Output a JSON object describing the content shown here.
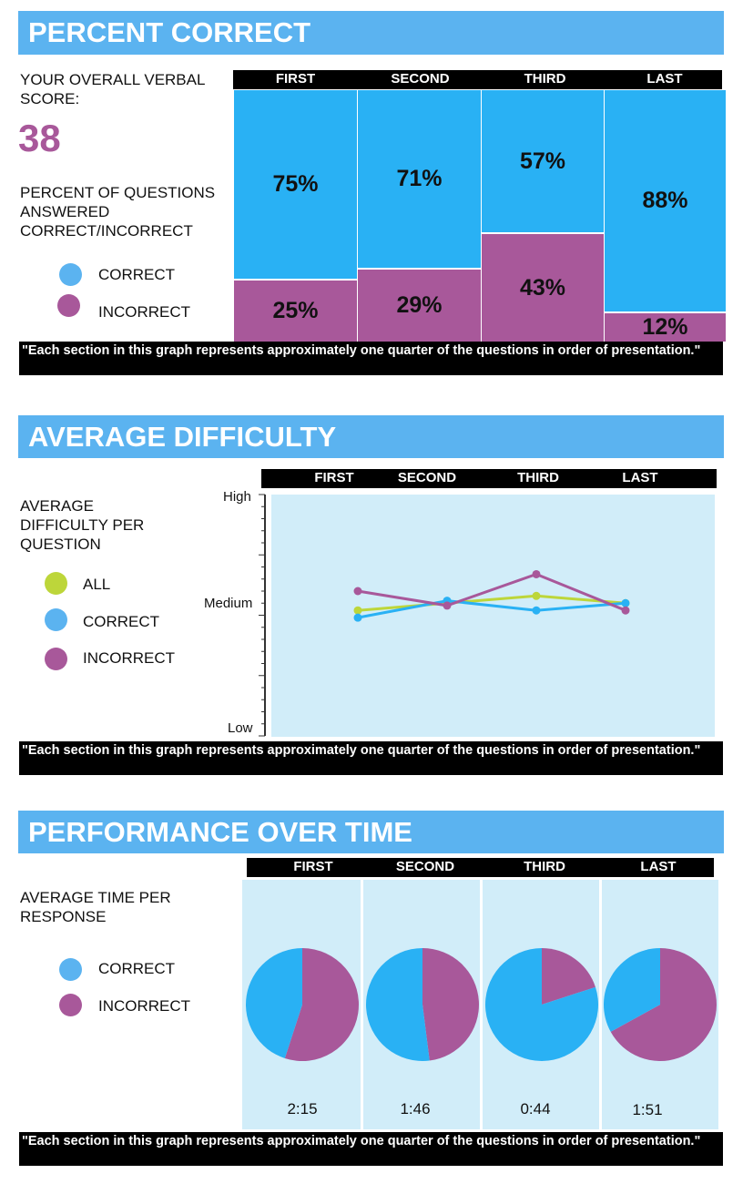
{
  "colors": {
    "correct": "#29b1f4",
    "incorrect": "#a8589a",
    "all": "#bdd63a",
    "banner": "#5bb3f0",
    "panel": "#d1edf9"
  },
  "sections": [
    "FIRST",
    "SECOND",
    "THIRD",
    "LAST"
  ],
  "note": "\"Each section in this graph represents approximately one quarter of the questions in order of presentation.\"",
  "percent": {
    "title": "PERCENT CORRECT",
    "score_label": "YOUR OVERALL VERBAL SCORE:",
    "score": "38",
    "desc": "PERCENT OF QUESTIONS ANSWERED CORRECT/INCORRECT",
    "legend": {
      "correct": "CORRECT",
      "incorrect": "INCORRECT"
    },
    "labels": [
      {
        "correct": "75%",
        "incorrect": "25%"
      },
      {
        "correct": "71%",
        "incorrect": "29%"
      },
      {
        "correct": "57%",
        "incorrect": "43%"
      },
      {
        "correct": "88%",
        "incorrect": "12%"
      }
    ]
  },
  "difficulty": {
    "title": "AVERAGE DIFFICULTY",
    "desc": "AVERAGE DIFFICULTY PER QUESTION",
    "legend": {
      "all": "ALL",
      "correct": "CORRECT",
      "incorrect": "INCORRECT"
    },
    "y_labels": {
      "high": "High",
      "medium": "Medium",
      "low": "Low"
    }
  },
  "performance": {
    "title": "PERFORMANCE OVER TIME",
    "desc": "AVERAGE TIME PER RESPONSE",
    "legend": {
      "correct": "CORRECT",
      "incorrect": "INCORRECT"
    },
    "times": [
      "2:15",
      "1:46",
      "0:44",
      "1:51"
    ]
  },
  "chart_data": [
    {
      "type": "bar",
      "title": "PERCENT CORRECT",
      "stacked": true,
      "categories": [
        "FIRST",
        "SECOND",
        "THIRD",
        "LAST"
      ],
      "series": [
        {
          "name": "CORRECT",
          "values": [
            75,
            71,
            57,
            88
          ]
        },
        {
          "name": "INCORRECT",
          "values": [
            25,
            29,
            43,
            12
          ]
        }
      ],
      "ylim": [
        0,
        100
      ]
    },
    {
      "type": "line",
      "title": "AVERAGE DIFFICULTY",
      "categories": [
        "FIRST",
        "SECOND",
        "THIRD",
        "LAST"
      ],
      "y_tick_labels": [
        "Low",
        "Medium",
        "High"
      ],
      "ylim": [
        0,
        100
      ],
      "series": [
        {
          "name": "ALL",
          "values": [
            52,
            55,
            58,
            55
          ]
        },
        {
          "name": "CORRECT",
          "values": [
            49,
            56,
            52,
            55
          ]
        },
        {
          "name": "INCORRECT",
          "values": [
            60,
            54,
            67,
            52
          ]
        }
      ]
    },
    {
      "type": "pie",
      "title": "PERFORMANCE OVER TIME",
      "categories": [
        "FIRST",
        "SECOND",
        "THIRD",
        "LAST"
      ],
      "series_names": [
        "CORRECT",
        "INCORRECT"
      ],
      "correct_share": [
        0.45,
        0.52,
        0.8,
        0.33
      ],
      "time_labels": [
        "2:15",
        "1:46",
        "0:44",
        "1:51"
      ]
    }
  ]
}
